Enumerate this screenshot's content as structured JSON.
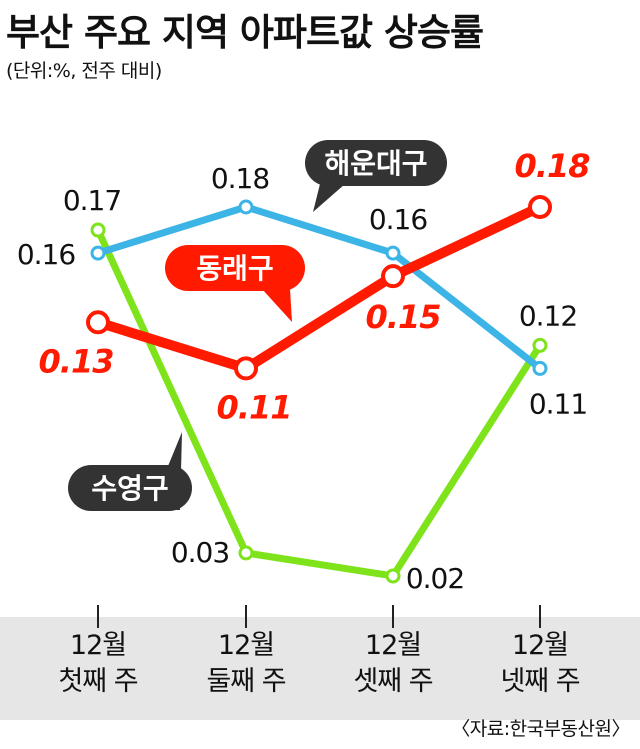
{
  "chart_data": {
    "type": "line",
    "title": "부산 주요 지역 아파트값 상승률",
    "subtitle": "(단위:%, 전주 대비)",
    "categories": [
      [
        "12월",
        "첫째 주"
      ],
      [
        "12월",
        "둘째 주"
      ],
      [
        "12월",
        "셋째 주"
      ],
      [
        "12월",
        "넷째 주"
      ]
    ],
    "series": [
      {
        "name": "수영구",
        "color": "#7ee31a",
        "values": [
          0.17,
          0.03,
          0.02,
          0.12
        ],
        "labels": [
          "0.17",
          "0.03",
          "0.02",
          "0.12"
        ]
      },
      {
        "name": "해운대구",
        "color": "#3cb4e6",
        "values": [
          0.16,
          0.18,
          0.16,
          0.11
        ],
        "labels": [
          "0.16",
          "0.18",
          "0.16",
          "0.11"
        ]
      },
      {
        "name": "동래구",
        "color": "#ff1a00",
        "values": [
          0.13,
          0.11,
          0.15,
          0.18
        ],
        "labels": [
          "0.13",
          "0.11",
          "0.15",
          "0.18"
        ]
      }
    ],
    "ylim": [
      0.0,
      0.2
    ],
    "grid": false,
    "legend": "callouts",
    "source": "〈자료:한국부동산원〉"
  }
}
